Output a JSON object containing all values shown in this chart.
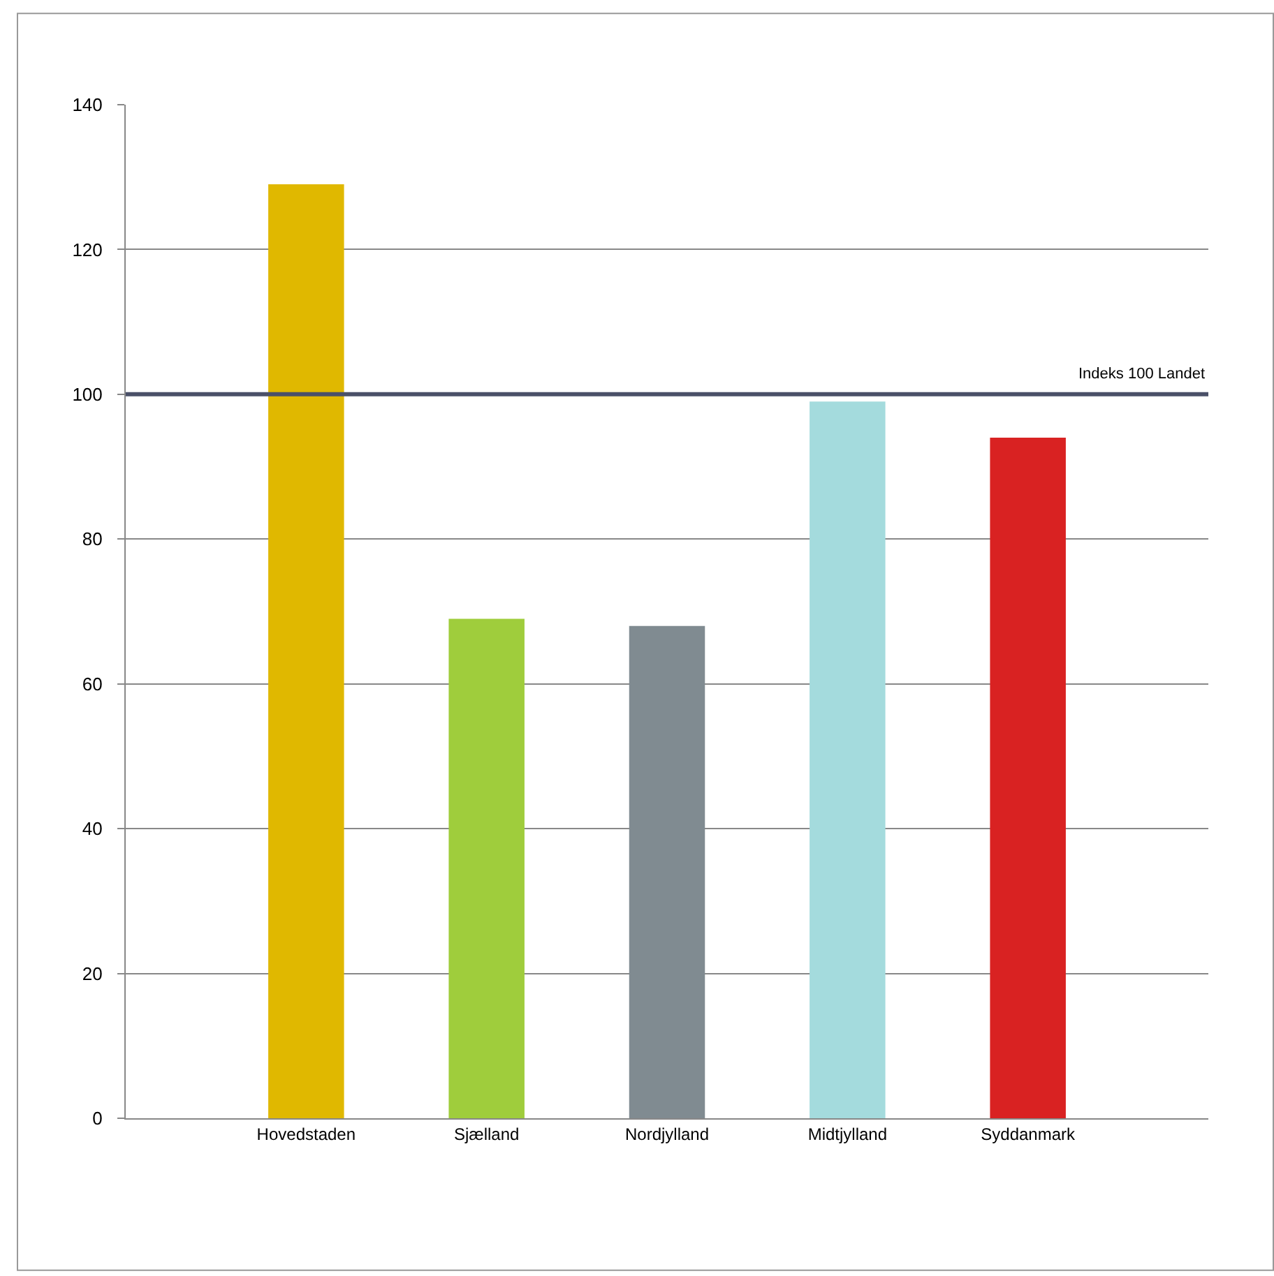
{
  "chart_data": {
    "type": "bar",
    "categories": [
      "Hovedstaden",
      "Sjælland",
      "Nordjylland",
      "Midtjylland",
      "Syddanmark"
    ],
    "values": [
      129,
      69,
      68,
      99,
      94
    ],
    "colors": [
      "#e0b800",
      "#9fcd3c",
      "#808b91",
      "#a4dbdd",
      "#d92222"
    ],
    "ylim": [
      0,
      140
    ],
    "yticks": [
      0,
      20,
      40,
      60,
      80,
      100,
      120,
      140
    ],
    "grid": "y",
    "ref_lines": [
      {
        "axis": "y",
        "value": 100,
        "label": "Indeks 100 Landet",
        "color": "#4a5068"
      }
    ]
  }
}
